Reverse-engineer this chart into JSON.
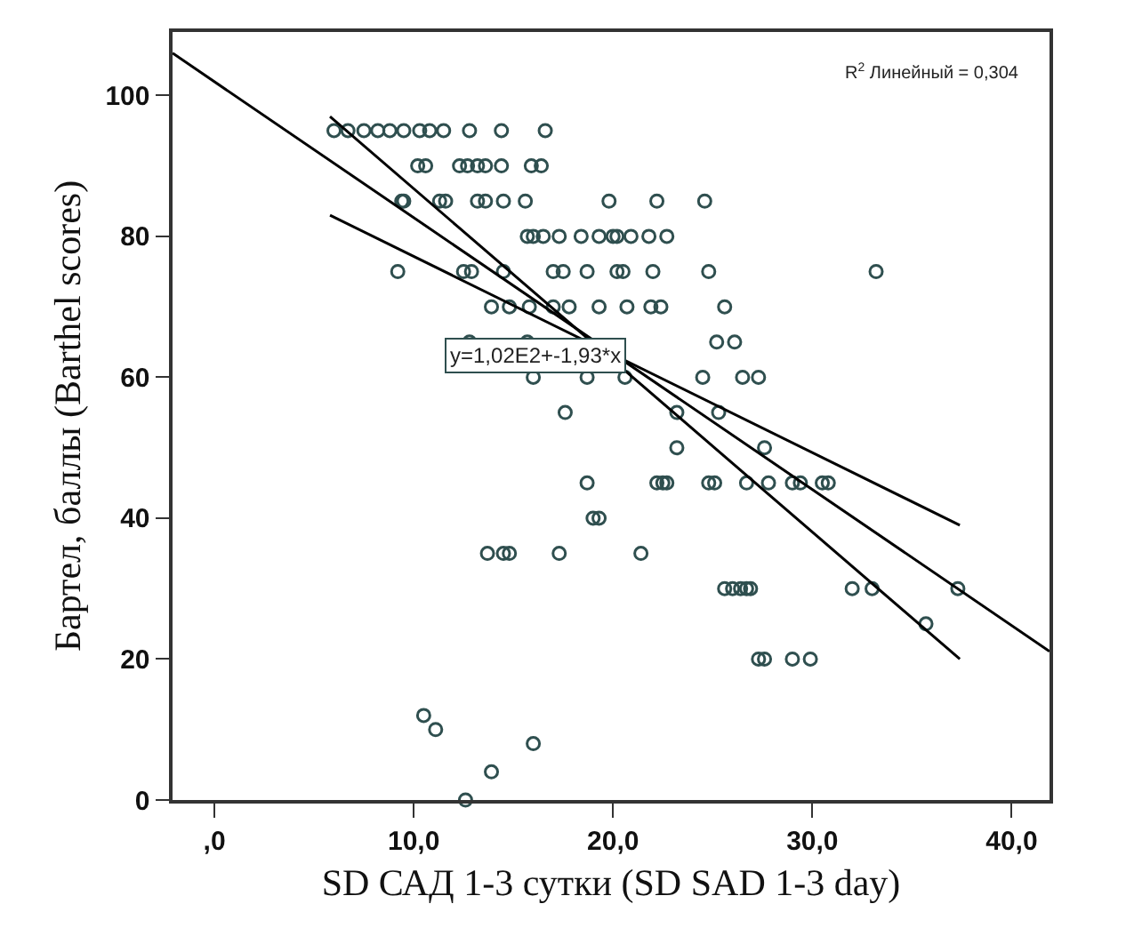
{
  "chart_data": {
    "type": "scatter",
    "xlabel": "SD САД 1-3 сутки (SD SAD 1-3 day)",
    "ylabel": "Бартел, баллы (Barthel scores)",
    "xlim": [
      -2.1,
      41.9
    ],
    "ylim": [
      0,
      109
    ],
    "xticks": [
      {
        "value": 0,
        "label": ",0"
      },
      {
        "value": 10,
        "label": "10,0"
      },
      {
        "value": 20,
        "label": "20,0"
      },
      {
        "value": 30,
        "label": "30,0"
      },
      {
        "value": 40,
        "label": "40,0"
      }
    ],
    "yticks": [
      0,
      20,
      40,
      60,
      80,
      100
    ],
    "grid": false,
    "annotations": [
      "R$^{2}$ Линейный = 0,304",
      {
        "text": "y=1,02E2+-1,93*x",
        "x": 16.1,
        "y": 63
      }
    ],
    "series": [
      {
        "marker": "circle",
        "color": "#2f4f4f",
        "x": [
          6.0,
          6.7,
          7.5,
          8.2,
          8.8,
          9.5,
          10.3,
          10.8,
          11.5,
          12.8,
          14.4,
          16.6,
          10.2,
          10.6,
          12.3,
          12.7,
          13.2,
          13.6,
          14.4,
          15.9,
          16.4,
          9.4,
          9.5,
          11.3,
          11.6,
          13.2,
          13.6,
          14.5,
          15.6,
          19.8,
          22.2,
          24.6,
          15.7,
          16.0,
          16.5,
          17.3,
          18.4,
          19.3,
          20.0,
          20.2,
          20.9,
          21.8,
          22.7,
          9.2,
          12.5,
          12.9,
          14.5,
          17.0,
          17.5,
          18.7,
          20.2,
          20.5,
          22.0,
          24.8,
          33.2,
          13.9,
          14.8,
          15.8,
          17.0,
          17.8,
          19.3,
          20.7,
          21.9,
          22.4,
          25.6,
          12.8,
          15.7,
          25.2,
          26.1,
          16.0,
          18.7,
          20.6,
          24.5,
          26.5,
          27.3,
          17.6,
          23.2,
          25.3,
          23.2,
          27.6,
          18.7,
          22.2,
          22.5,
          22.7,
          24.8,
          25.1,
          26.7,
          27.8,
          29.0,
          29.4,
          30.5,
          30.8,
          19.0,
          19.3,
          13.7,
          14.5,
          14.8,
          17.3,
          21.4,
          25.6,
          26.0,
          26.4,
          26.7,
          26.9,
          32.0,
          33.0,
          37.3,
          35.7,
          27.3,
          27.6,
          29.0,
          29.9,
          10.5,
          11.1,
          16.0,
          13.9,
          12.6
        ],
        "values": [
          95,
          95,
          95,
          95,
          95,
          95,
          95,
          95,
          95,
          95,
          95,
          95,
          90,
          90,
          90,
          90,
          90,
          90,
          90,
          90,
          90,
          85,
          85,
          85,
          85,
          85,
          85,
          85,
          85,
          85,
          85,
          85,
          80,
          80,
          80,
          80,
          80,
          80,
          80,
          80,
          80,
          80,
          80,
          75,
          75,
          75,
          75,
          75,
          75,
          75,
          75,
          75,
          75,
          75,
          75,
          70,
          70,
          70,
          70,
          70,
          70,
          70,
          70,
          70,
          70,
          65,
          65,
          65,
          65,
          60,
          60,
          60,
          60,
          60,
          60,
          55,
          55,
          55,
          50,
          50,
          45,
          45,
          45,
          45,
          45,
          45,
          45,
          45,
          45,
          45,
          45,
          45,
          40,
          40,
          35,
          35,
          35,
          35,
          35,
          30,
          30,
          30,
          30,
          30,
          30,
          30,
          30,
          25,
          20,
          20,
          20,
          20,
          12,
          10,
          8,
          4,
          0
        ]
      },
      {
        "type": "line",
        "marker": "none",
        "color": "#000000",
        "x": [
          -2.1,
          41.9
        ],
        "values": [
          106,
          21.1
        ]
      },
      {
        "type": "line",
        "marker": "none",
        "color": "#000000",
        "x": [
          5.8,
          37.4
        ],
        "values": [
          97,
          20
        ]
      },
      {
        "type": "line",
        "marker": "none",
        "color": "#000000",
        "x": [
          5.8,
          37.4
        ],
        "values": [
          83,
          39
        ]
      }
    ]
  }
}
